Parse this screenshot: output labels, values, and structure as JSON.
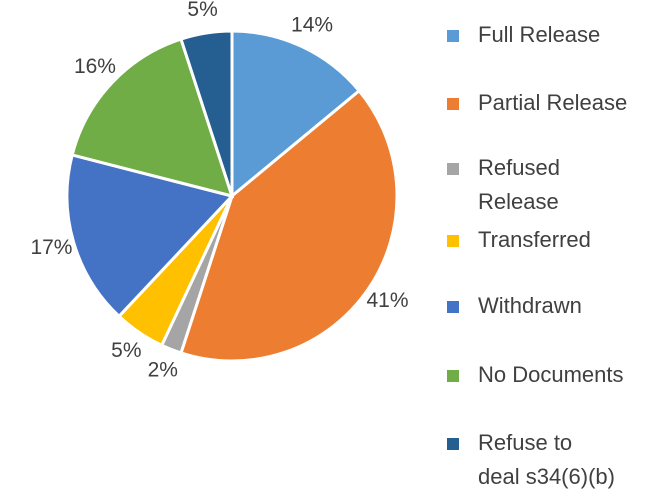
{
  "chart_data": {
    "type": "pie",
    "categories": [
      "Full Release",
      "Partial Release",
      "Refused Release",
      "Transferred",
      "Withdrawn",
      "No Documents",
      "Refuse to deal s34(6)(b)"
    ],
    "values": [
      14,
      41,
      2,
      5,
      17,
      16,
      5
    ],
    "value_labels": [
      "14%",
      "41%",
      "2%",
      "5%",
      "17%",
      "16%",
      "5%"
    ],
    "colors": [
      "#5b9bd5",
      "#ed7d31",
      "#a5a5a5",
      "#ffc000",
      "#4472c4",
      "#70ad47",
      "#255e91"
    ],
    "legend": "right"
  }
}
